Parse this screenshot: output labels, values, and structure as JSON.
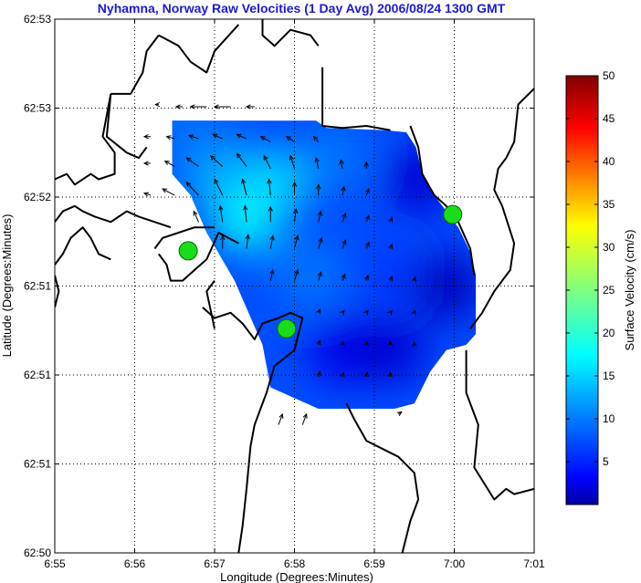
{
  "title": "Nyhamna, Norway Raw Velocities (1 Day Avg) 2006/08/24 1300 GMT",
  "colors": {
    "title": "#1a1ad6",
    "land": "#000000",
    "site": "#19dd19",
    "site_edge": "#006600",
    "arrow": "#000000"
  },
  "chart_data": {
    "type": "heatmap",
    "title": "Nyhamna, Norway Raw Velocities (1 Day Avg) 2006/08/24 1300 GMT",
    "xlabel": "Longitude (Degrees:Minutes)",
    "ylabel": "Latitude (Degrees:Minutes)",
    "xlim": [
      0,
      6
    ],
    "ylim": [
      0,
      5
    ],
    "x_ticks": [
      "6:55",
      "6:56",
      "6:57",
      "6:58",
      "6:59",
      "7:00",
      "7:01"
    ],
    "y_ticks": [
      "62:50",
      "62:51",
      "62:51",
      "62:51",
      "62:52",
      "62:53",
      "62:53"
    ],
    "grid": true,
    "colorbar": {
      "label": "Surface Velocity (cm/s)",
      "range": [
        0,
        50
      ],
      "ticks": [
        "5",
        "10",
        "15",
        "20",
        "25",
        "30",
        "35",
        "40",
        "45",
        "50"
      ],
      "colormap": "jet"
    },
    "sites": [
      {
        "x": 1.67,
        "y": 2.83
      },
      {
        "x": 2.9,
        "y": 2.1
      },
      {
        "x": 4.98,
        "y": 3.17
      }
    ],
    "field_boundary": [
      [
        1.47,
        4.05
      ],
      [
        3.27,
        4.05
      ],
      [
        3.4,
        3.98
      ],
      [
        4.15,
        3.96
      ],
      [
        4.4,
        3.94
      ],
      [
        4.52,
        3.8
      ],
      [
        4.6,
        3.55
      ],
      [
        4.75,
        3.35
      ],
      [
        4.9,
        3.2
      ],
      [
        5.05,
        3.05
      ],
      [
        5.2,
        2.82
      ],
      [
        5.27,
        2.6
      ],
      [
        5.27,
        2.05
      ],
      [
        5.15,
        1.95
      ],
      [
        4.9,
        1.9
      ],
      [
        4.7,
        1.7
      ],
      [
        4.5,
        1.4
      ],
      [
        4.25,
        1.35
      ],
      [
        3.3,
        1.35
      ],
      [
        2.7,
        1.55
      ],
      [
        2.6,
        1.95
      ],
      [
        2.25,
        2.55
      ],
      [
        1.9,
        3.0
      ],
      [
        1.7,
        3.35
      ],
      [
        1.47,
        3.55
      ]
    ],
    "speed_hotspots": [
      {
        "x": 2.4,
        "y": 3.15,
        "value": 19
      },
      {
        "x": 2.7,
        "y": 3.45,
        "value": 17
      },
      {
        "x": 2.0,
        "y": 3.6,
        "value": 15
      },
      {
        "x": 1.7,
        "y": 3.9,
        "value": 12
      },
      {
        "x": 3.5,
        "y": 3.7,
        "value": 12
      },
      {
        "x": 3.2,
        "y": 2.6,
        "value": 12
      },
      {
        "x": 4.2,
        "y": 2.6,
        "value": 9
      },
      {
        "x": 3.6,
        "y": 1.9,
        "value": 5
      },
      {
        "x": 4.2,
        "y": 1.9,
        "value": 4
      },
      {
        "x": 4.9,
        "y": 2.5,
        "value": 3
      },
      {
        "x": 4.55,
        "y": 3.5,
        "value": 4
      }
    ],
    "vectors": [
      {
        "x": 1.3,
        "y": 4.2,
        "u": -0.04,
        "v": 0.0
      },
      {
        "x": 1.6,
        "y": 4.18,
        "u": -0.08,
        "v": 0.0
      },
      {
        "x": 1.9,
        "y": 4.18,
        "u": -0.2,
        "v": 0.0
      },
      {
        "x": 2.2,
        "y": 4.18,
        "u": -0.2,
        "v": 0.0
      },
      {
        "x": 2.5,
        "y": 4.18,
        "u": -0.1,
        "v": 0.0
      },
      {
        "x": 1.2,
        "y": 3.9,
        "u": -0.08,
        "v": 0.0
      },
      {
        "x": 1.5,
        "y": 3.88,
        "u": -0.1,
        "v": 0.02
      },
      {
        "x": 1.8,
        "y": 3.88,
        "u": -0.12,
        "v": 0.03
      },
      {
        "x": 2.1,
        "y": 3.88,
        "u": -0.12,
        "v": 0.04
      },
      {
        "x": 2.4,
        "y": 3.88,
        "u": -0.12,
        "v": 0.04
      },
      {
        "x": 2.7,
        "y": 3.85,
        "u": -0.12,
        "v": 0.05
      },
      {
        "x": 3.0,
        "y": 3.85,
        "u": -0.1,
        "v": 0.05
      },
      {
        "x": 3.3,
        "y": 3.85,
        "u": -0.06,
        "v": 0.05
      },
      {
        "x": 1.2,
        "y": 3.65,
        "u": -0.08,
        "v": 0.0
      },
      {
        "x": 1.5,
        "y": 3.62,
        "u": -0.12,
        "v": 0.05
      },
      {
        "x": 1.8,
        "y": 3.62,
        "u": -0.15,
        "v": 0.08
      },
      {
        "x": 2.1,
        "y": 3.62,
        "u": -0.15,
        "v": 0.1
      },
      {
        "x": 2.4,
        "y": 3.62,
        "u": -0.12,
        "v": 0.12
      },
      {
        "x": 2.7,
        "y": 3.6,
        "u": -0.08,
        "v": 0.12
      },
      {
        "x": 3.0,
        "y": 3.6,
        "u": -0.05,
        "v": 0.12
      },
      {
        "x": 3.3,
        "y": 3.6,
        "u": -0.03,
        "v": 0.1
      },
      {
        "x": 3.6,
        "y": 3.6,
        "u": -0.02,
        "v": 0.08
      },
      {
        "x": 3.9,
        "y": 3.6,
        "u": 0.0,
        "v": 0.06
      },
      {
        "x": 1.2,
        "y": 3.35,
        "u": -0.08,
        "v": 0.02
      },
      {
        "x": 1.5,
        "y": 3.35,
        "u": -0.15,
        "v": 0.06
      },
      {
        "x": 1.8,
        "y": 3.35,
        "u": -0.15,
        "v": 0.12
      },
      {
        "x": 2.1,
        "y": 3.35,
        "u": -0.1,
        "v": 0.15
      },
      {
        "x": 2.4,
        "y": 3.35,
        "u": -0.05,
        "v": 0.15
      },
      {
        "x": 2.7,
        "y": 3.35,
        "u": -0.02,
        "v": 0.15
      },
      {
        "x": 3.0,
        "y": 3.35,
        "u": 0.0,
        "v": 0.12
      },
      {
        "x": 3.3,
        "y": 3.35,
        "u": 0.0,
        "v": 0.1
      },
      {
        "x": 3.6,
        "y": 3.35,
        "u": 0.02,
        "v": 0.08
      },
      {
        "x": 3.9,
        "y": 3.35,
        "u": 0.03,
        "v": 0.06
      },
      {
        "x": 1.8,
        "y": 3.1,
        "u": -0.06,
        "v": 0.1
      },
      {
        "x": 2.1,
        "y": 3.1,
        "u": -0.03,
        "v": 0.15
      },
      {
        "x": 2.4,
        "y": 3.1,
        "u": -0.02,
        "v": 0.15
      },
      {
        "x": 2.7,
        "y": 3.1,
        "u": 0.0,
        "v": 0.14
      },
      {
        "x": 3.0,
        "y": 3.1,
        "u": 0.02,
        "v": 0.12
      },
      {
        "x": 3.3,
        "y": 3.1,
        "u": 0.03,
        "v": 0.1
      },
      {
        "x": 3.6,
        "y": 3.1,
        "u": 0.04,
        "v": 0.08
      },
      {
        "x": 3.9,
        "y": 3.1,
        "u": 0.03,
        "v": 0.06
      },
      {
        "x": 4.2,
        "y": 3.1,
        "u": 0.02,
        "v": 0.04
      },
      {
        "x": 2.1,
        "y": 2.85,
        "u": 0.0,
        "v": 0.12
      },
      {
        "x": 2.4,
        "y": 2.85,
        "u": 0.02,
        "v": 0.13
      },
      {
        "x": 2.7,
        "y": 2.85,
        "u": 0.03,
        "v": 0.12
      },
      {
        "x": 3.0,
        "y": 2.85,
        "u": 0.04,
        "v": 0.12
      },
      {
        "x": 3.3,
        "y": 2.85,
        "u": 0.04,
        "v": 0.1
      },
      {
        "x": 3.6,
        "y": 2.85,
        "u": 0.04,
        "v": 0.08
      },
      {
        "x": 3.9,
        "y": 2.85,
        "u": 0.03,
        "v": 0.06
      },
      {
        "x": 4.2,
        "y": 2.85,
        "u": 0.02,
        "v": 0.04
      },
      {
        "x": 2.7,
        "y": 2.55,
        "u": 0.03,
        "v": 0.1
      },
      {
        "x": 3.0,
        "y": 2.55,
        "u": 0.04,
        "v": 0.1
      },
      {
        "x": 3.3,
        "y": 2.55,
        "u": 0.03,
        "v": 0.08
      },
      {
        "x": 3.6,
        "y": 2.55,
        "u": 0.03,
        "v": 0.06
      },
      {
        "x": 3.9,
        "y": 2.55,
        "u": 0.02,
        "v": 0.05
      },
      {
        "x": 4.2,
        "y": 2.55,
        "u": 0.02,
        "v": 0.04
      },
      {
        "x": 4.5,
        "y": 2.55,
        "u": 0.01,
        "v": 0.03
      },
      {
        "x": 3.3,
        "y": 2.25,
        "u": 0.02,
        "v": 0.03
      },
      {
        "x": 3.6,
        "y": 2.25,
        "u": 0.02,
        "v": 0.02
      },
      {
        "x": 3.9,
        "y": 2.25,
        "u": 0.02,
        "v": 0.02
      },
      {
        "x": 4.2,
        "y": 2.25,
        "u": 0.02,
        "v": 0.02
      },
      {
        "x": 4.5,
        "y": 2.25,
        "u": 0.01,
        "v": 0.02
      },
      {
        "x": 3.3,
        "y": 1.95,
        "u": 0.02,
        "v": 0.04
      },
      {
        "x": 3.6,
        "y": 1.95,
        "u": 0.01,
        "v": 0.03
      },
      {
        "x": 3.9,
        "y": 1.95,
        "u": 0.01,
        "v": 0.03
      },
      {
        "x": 4.2,
        "y": 1.95,
        "u": 0.0,
        "v": 0.03
      },
      {
        "x": 4.5,
        "y": 1.95,
        "u": 0.0,
        "v": 0.02
      },
      {
        "x": 3.3,
        "y": 1.65,
        "u": 0.02,
        "v": 0.05
      },
      {
        "x": 3.6,
        "y": 1.65,
        "u": 0.01,
        "v": 0.04
      },
      {
        "x": 3.9,
        "y": 1.65,
        "u": 0.01,
        "v": 0.04
      },
      {
        "x": 4.2,
        "y": 1.65,
        "u": 0.0,
        "v": 0.04
      },
      {
        "x": 2.8,
        "y": 1.2,
        "u": 0.05,
        "v": 0.1
      },
      {
        "x": 3.1,
        "y": 1.2,
        "u": 0.05,
        "v": 0.1
      },
      {
        "x": 4.3,
        "y": 1.3,
        "u": 0.04,
        "v": 0.02
      }
    ],
    "coastlines": [
      [
        [
          1.3,
          4.85
        ],
        [
          1.55,
          4.75
        ],
        [
          1.7,
          4.6
        ],
        [
          1.9,
          4.5
        ],
        [
          2.0,
          4.7
        ],
        [
          2.3,
          4.95
        ]
      ],
      [
        [
          2.6,
          5.0
        ],
        [
          2.6,
          4.85
        ],
        [
          2.75,
          4.75
        ],
        [
          2.95,
          4.9
        ],
        [
          3.2,
          4.85
        ],
        [
          3.3,
          4.75
        ]
      ],
      [
        [
          3.35,
          4.55
        ],
        [
          3.35,
          4.0
        ],
        [
          3.6,
          3.98
        ],
        [
          3.9,
          4.0
        ],
        [
          4.2,
          3.96
        ]
      ],
      [
        [
          4.45,
          4.0
        ],
        [
          4.55,
          3.8
        ],
        [
          4.6,
          3.55
        ],
        [
          4.75,
          3.35
        ],
        [
          4.9,
          3.25
        ],
        [
          5.05,
          3.1
        ],
        [
          5.2,
          2.85
        ],
        [
          5.25,
          2.6
        ]
      ],
      [
        [
          5.15,
          1.9
        ],
        [
          5.15,
          1.5
        ],
        [
          5.3,
          1.2
        ],
        [
          5.25,
          0.8
        ],
        [
          5.5,
          0.5
        ],
        [
          5.65,
          0.6
        ],
        [
          5.75,
          0.55
        ],
        [
          6.0,
          0.6
        ]
      ],
      [
        [
          5.6,
          3.25
        ],
        [
          5.5,
          3.4
        ],
        [
          5.55,
          3.6
        ],
        [
          5.65,
          3.7
        ],
        [
          5.75,
          3.85
        ],
        [
          5.8,
          4.2
        ],
        [
          6.0,
          4.35
        ]
      ],
      [
        [
          5.2,
          2.1
        ],
        [
          5.35,
          2.25
        ],
        [
          5.5,
          2.45
        ],
        [
          5.7,
          2.65
        ],
        [
          5.75,
          2.9
        ],
        [
          5.6,
          3.25
        ]
      ],
      [
        [
          0.7,
          4.3
        ],
        [
          0.95,
          4.3
        ],
        [
          1.1,
          4.5
        ],
        [
          1.15,
          4.7
        ],
        [
          1.3,
          4.85
        ]
      ],
      [
        [
          0.7,
          4.3
        ],
        [
          0.65,
          3.9
        ],
        [
          0.9,
          3.75
        ],
        [
          1.05,
          3.7
        ],
        [
          1.15,
          3.8
        ]
      ],
      [
        [
          0.0,
          3.5
        ],
        [
          0.15,
          3.55
        ],
        [
          0.25,
          3.45
        ],
        [
          0.45,
          3.55
        ],
        [
          0.55,
          3.5
        ],
        [
          0.75,
          3.55
        ],
        [
          0.75,
          3.75
        ],
        [
          0.6,
          3.9
        ],
        [
          0.7,
          4.3
        ]
      ],
      [
        [
          0.0,
          3.1
        ],
        [
          0.1,
          3.2
        ],
        [
          0.25,
          3.25
        ],
        [
          0.35,
          3.2
        ],
        [
          0.5,
          3.15
        ],
        [
          0.7,
          3.1
        ],
        [
          0.9,
          3.2
        ],
        [
          1.05,
          3.15
        ],
        [
          1.25,
          3.1
        ],
        [
          1.45,
          3.05
        ]
      ],
      [
        [
          0.0,
          2.7
        ],
        [
          0.1,
          2.8
        ],
        [
          0.2,
          2.95
        ],
        [
          0.35,
          3.05
        ],
        [
          0.45,
          2.95
        ],
        [
          0.55,
          2.8
        ],
        [
          0.7,
          2.75
        ]
      ],
      [
        [
          1.3,
          2.8
        ],
        [
          1.4,
          2.7
        ],
        [
          1.45,
          2.55
        ],
        [
          1.6,
          2.55
        ],
        [
          1.75,
          2.65
        ],
        [
          1.9,
          2.75
        ],
        [
          2.05,
          3.0
        ],
        [
          2.3,
          2.9
        ]
      ],
      [
        [
          1.25,
          2.85
        ],
        [
          1.35,
          2.95
        ],
        [
          1.55,
          3.0
        ],
        [
          1.75,
          3.05
        ],
        [
          1.85,
          3.05
        ],
        [
          2.0,
          3.05
        ]
      ],
      [
        [
          1.85,
          2.3
        ],
        [
          2.0,
          2.2
        ],
        [
          2.2,
          2.25
        ],
        [
          2.35,
          2.15
        ],
        [
          2.5,
          2.0
        ],
        [
          2.6,
          2.15
        ],
        [
          2.8,
          2.2
        ],
        [
          2.95,
          2.25
        ],
        [
          3.1,
          2.2
        ],
        [
          3.05,
          2.05
        ],
        [
          3.0,
          1.9
        ],
        [
          2.75,
          1.75
        ],
        [
          2.65,
          1.5
        ],
        [
          2.5,
          1.2
        ],
        [
          2.45,
          1.0
        ],
        [
          2.4,
          0.6
        ],
        [
          2.35,
          0.25
        ],
        [
          2.3,
          0.0
        ]
      ],
      [
        [
          2.0,
          2.1
        ],
        [
          1.9,
          2.45
        ],
        [
          2.0,
          2.55
        ]
      ],
      [
        [
          4.35,
          0.0
        ],
        [
          4.45,
          0.3
        ],
        [
          4.55,
          0.5
        ],
        [
          4.5,
          0.75
        ],
        [
          4.3,
          0.9
        ],
        [
          3.9,
          1.05
        ],
        [
          3.75,
          1.25
        ],
        [
          3.65,
          1.4
        ]
      ],
      [
        [
          0.0,
          2.6
        ],
        [
          0.05,
          2.45
        ],
        [
          0.0,
          2.3
        ]
      ]
    ]
  }
}
